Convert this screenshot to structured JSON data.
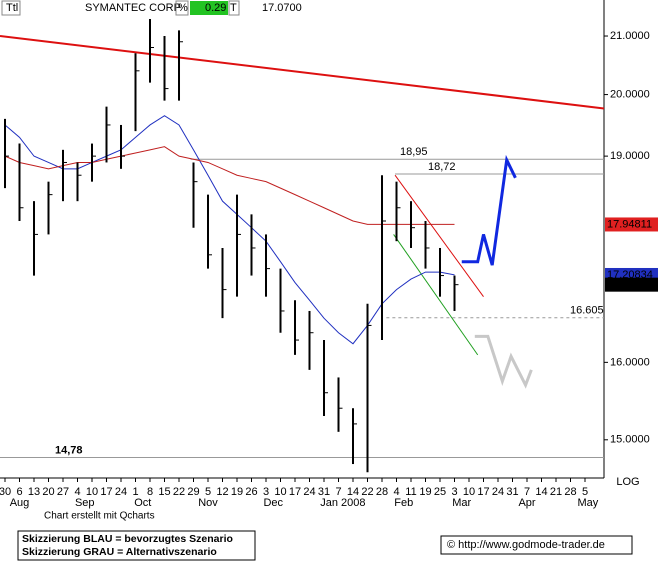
{
  "header": {
    "symbol": "Ttl",
    "name": "SYMANTEC CORP",
    "pct_label": "%",
    "change": "0.29",
    "t_label": "T",
    "last": "17.0700"
  },
  "chart_data": {
    "type": "ohlc",
    "log_scale": true,
    "ylim": [
      14.53,
      21.64
    ],
    "yticks": [
      {
        "value": 21,
        "label": "21.0000"
      },
      {
        "value": 20,
        "label": "20.0000"
      },
      {
        "value": 19,
        "label": "19.0000"
      },
      {
        "value": 16,
        "label": "16.0000"
      },
      {
        "value": 15,
        "label": "15.0000"
      }
    ],
    "log_label": "LOG",
    "xlim": [
      -0.345,
      41.31
    ],
    "xticks": [
      {
        "value": 0,
        "label": "30"
      },
      {
        "value": 1,
        "label": "6"
      },
      {
        "value": 2,
        "label": "13"
      },
      {
        "value": 3,
        "label": "20"
      },
      {
        "value": 4,
        "label": "27"
      },
      {
        "value": 5,
        "label": "4"
      },
      {
        "value": 6,
        "label": "10"
      },
      {
        "value": 7,
        "label": "17"
      },
      {
        "value": 8,
        "label": "24"
      },
      {
        "value": 9,
        "label": "1"
      },
      {
        "value": 10,
        "label": "8"
      },
      {
        "value": 11,
        "label": "15"
      },
      {
        "value": 12,
        "label": "22"
      },
      {
        "value": 13,
        "label": "29"
      },
      {
        "value": 14,
        "label": "5"
      },
      {
        "value": 15,
        "label": "12"
      },
      {
        "value": 16,
        "label": "19"
      },
      {
        "value": 17,
        "label": "26"
      },
      {
        "value": 18,
        "label": "3"
      },
      {
        "value": 19,
        "label": "10"
      },
      {
        "value": 20,
        "label": "17"
      },
      {
        "value": 21,
        "label": "24"
      },
      {
        "value": 22,
        "label": "31"
      },
      {
        "value": 23,
        "label": "7"
      },
      {
        "value": 24,
        "label": "14"
      },
      {
        "value": 25,
        "label": "22"
      },
      {
        "value": 26,
        "label": "28"
      },
      {
        "value": 27,
        "label": "4"
      },
      {
        "value": 28,
        "label": "11"
      },
      {
        "value": 29,
        "label": "19"
      },
      {
        "value": 30,
        "label": "25"
      },
      {
        "value": 31,
        "label": "3"
      },
      {
        "value": 32,
        "label": "10"
      },
      {
        "value": 33,
        "label": "17"
      },
      {
        "value": 34,
        "label": "24"
      },
      {
        "value": 35,
        "label": "31"
      },
      {
        "value": 36,
        "label": "7"
      },
      {
        "value": 37,
        "label": "14"
      },
      {
        "value": 38,
        "label": "21"
      },
      {
        "value": 39,
        "label": "28"
      },
      {
        "value": 40,
        "label": "5"
      }
    ],
    "month_ticks": [
      {
        "value": 1,
        "label": "Aug"
      },
      {
        "value": 5.5,
        "label": "Sep"
      },
      {
        "value": 9.5,
        "label": "Oct"
      },
      {
        "value": 14,
        "label": "Nov"
      },
      {
        "value": 18.5,
        "label": "Dec"
      },
      {
        "value": 23.3,
        "label": "Jan 2008"
      },
      {
        "value": 27.5,
        "label": "Feb"
      },
      {
        "value": 31.5,
        "label": "Mar"
      },
      {
        "value": 36,
        "label": "Apr"
      },
      {
        "value": 40.2,
        "label": "May"
      }
    ],
    "x": [
      0,
      1,
      2,
      3,
      4,
      5,
      6,
      7,
      8,
      9,
      10,
      11,
      12,
      13,
      14,
      15,
      16,
      17,
      18,
      19,
      20,
      21,
      22,
      23,
      24,
      25,
      26,
      27,
      28,
      29,
      30,
      31
    ],
    "high": [
      19.6,
      19.2,
      18.3,
      18.6,
      19.1,
      18.9,
      19.2,
      19.8,
      19.5,
      20.7,
      21.3,
      21.0,
      21.1,
      18.9,
      18.4,
      17.6,
      18.4,
      18.1,
      17.8,
      17.3,
      16.85,
      16.7,
      16.3,
      15.8,
      15.4,
      16.8,
      18.7,
      18.6,
      18.3,
      18.0,
      17.6,
      17.2
    ],
    "low": [
      18.5,
      18.0,
      17.2,
      17.8,
      18.3,
      18.3,
      18.6,
      18.9,
      18.8,
      19.4,
      20.2,
      19.9,
      19.9,
      17.9,
      17.3,
      16.6,
      16.9,
      17.2,
      16.9,
      16.4,
      16.1,
      15.9,
      15.3,
      15.1,
      14.7,
      14.6,
      16.3,
      17.7,
      17.6,
      17.3,
      16.9,
      16.7
    ],
    "close": [
      19.0,
      18.2,
      17.8,
      18.4,
      18.9,
      18.7,
      19.0,
      19.5,
      19.0,
      20.4,
      20.8,
      20.1,
      20.9,
      18.6,
      17.5,
      17.0,
      17.8,
      17.6,
      17.3,
      16.7,
      16.3,
      16.4,
      15.6,
      15.4,
      15.2,
      16.5,
      18.0,
      18.2,
      17.9,
      17.6,
      17.2,
      17.07
    ],
    "bar_color": "#000000",
    "series": [
      {
        "color": "#2030c0",
        "values": [
          19.5,
          19.3,
          19.0,
          18.9,
          18.8,
          18.8,
          18.9,
          19.0,
          19.1,
          19.3,
          19.5,
          19.65,
          19.5,
          19.1,
          18.7,
          18.3,
          18.1,
          17.9,
          17.7,
          17.4,
          17.1,
          16.85,
          16.6,
          16.4,
          16.25,
          16.5,
          16.8,
          17.0,
          17.15,
          17.25,
          17.25,
          17.21
        ]
      },
      {
        "color": "#c02020",
        "values": [
          19.0,
          18.9,
          18.85,
          18.8,
          18.85,
          18.9,
          18.9,
          18.95,
          19.0,
          19.05,
          19.1,
          19.15,
          19.0,
          18.95,
          18.9,
          18.8,
          18.7,
          18.65,
          18.6,
          18.5,
          18.4,
          18.3,
          18.2,
          18.1,
          18.0,
          17.95,
          17.95,
          17.95,
          17.95,
          17.95,
          17.95,
          17.95
        ]
      }
    ],
    "price_tags": [
      {
        "value": 17.94811,
        "label": "17.94811",
        "color": "#e02020"
      },
      {
        "value": 17.20834,
        "label": "17.20834",
        "color": "#2030c0"
      },
      {
        "value": 17.07,
        "label": "17.0700",
        "color": "#000000"
      }
    ],
    "levels": [
      {
        "value": 18.95,
        "label": "18,95",
        "from": 12.8,
        "color": "#999999"
      },
      {
        "value": 18.72,
        "label": "18,72",
        "from": 26.9,
        "color": "#999999"
      },
      {
        "value": 16.605,
        "label": "16.605",
        "from": 26.3,
        "color": "#999999",
        "dashed": true
      },
      {
        "value": 14.78,
        "label": "14,78",
        "from": -0.345,
        "color": "#999999"
      }
    ],
    "trend_lines": [
      {
        "color": "#dd1010",
        "x": [
          -0.345,
          41.31
        ],
        "y": [
          21.0,
          19.77
        ]
      },
      {
        "color": "#dd1010",
        "x": [
          26.9,
          33.0
        ],
        "y": [
          18.7,
          16.9
        ]
      },
      {
        "color": "#20a020",
        "x": [
          26.8,
          32.6
        ],
        "y": [
          17.8,
          16.1
        ]
      }
    ],
    "scenarios": [
      {
        "color": "#1028e0",
        "x": [
          31.5,
          32.6,
          33.0,
          33.6,
          34.6,
          35.2
        ],
        "y": [
          17.4,
          17.4,
          17.8,
          17.35,
          18.94,
          18.66
        ]
      },
      {
        "color": "#c8c8c8",
        "x": [
          32.4,
          33.3,
          34.3,
          34.9,
          35.9,
          36.3
        ],
        "y": [
          16.35,
          16.35,
          15.75,
          16.08,
          15.7,
          15.9
        ]
      }
    ]
  },
  "footer": {
    "credit": "Chart erstellt mit Qcharts",
    "legend_blue": "Skizzierung BLAU = bevorzugtes Szenario",
    "legend_grey": "Skizzierung GRAU = Alternativszenario",
    "source": "© http://www.godmode-trader.de"
  }
}
